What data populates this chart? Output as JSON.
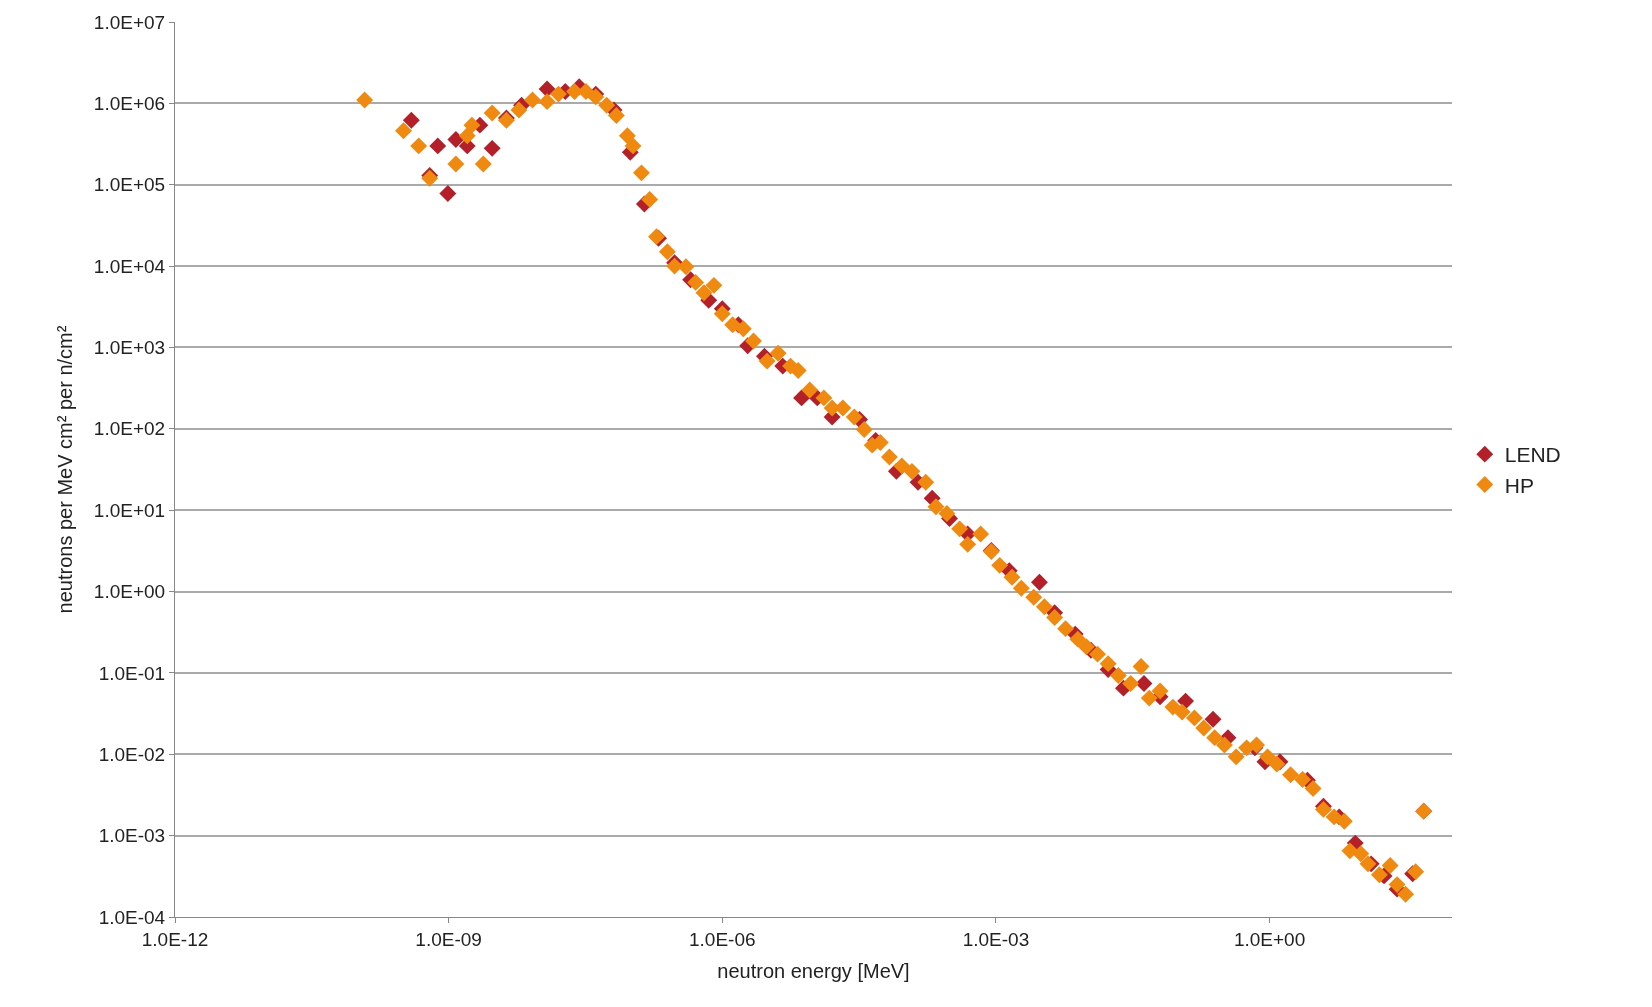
{
  "chart_data": {
    "type": "scatter",
    "xlabel": "neutron energy [MeV]",
    "ylabel": "neutrons per MeV cm² per n/cm²",
    "log": "xy",
    "grid": "y",
    "legend": "right",
    "marker": "diamond",
    "xlim": [
      1e-12,
      100
    ],
    "ylim": [
      0.0001,
      10000000
    ],
    "xticks": [
      {
        "value": 1e-12,
        "label": "1.0E-12"
      },
      {
        "value": 1e-09,
        "label": "1.0E-09"
      },
      {
        "value": 1e-06,
        "label": "1.0E-06"
      },
      {
        "value": 0.001,
        "label": "1.0E-03"
      },
      {
        "value": 1,
        "label": "1.0E+00"
      }
    ],
    "yticks": [
      {
        "value": 0.0001,
        "label": "1.0E-04"
      },
      {
        "value": 0.001,
        "label": "1.0E-03"
      },
      {
        "value": 0.01,
        "label": "1.0E-02"
      },
      {
        "value": 0.1,
        "label": "1.0E-01"
      },
      {
        "value": 1,
        "label": "1.0E+00"
      },
      {
        "value": 10,
        "label": "1.0E+01"
      },
      {
        "value": 100,
        "label": "1.0E+02"
      },
      {
        "value": 1000,
        "label": "1.0E+03"
      },
      {
        "value": 10000,
        "label": "1.0E+04"
      },
      {
        "value": 100000,
        "label": "1.0E+05"
      },
      {
        "value": 1000000,
        "label": "1.0E+06"
      },
      {
        "value": 10000000,
        "label": "1.0E+07"
      }
    ],
    "series": [
      {
        "name": "LEND",
        "color": "#b3202a",
        "x": [
          3.9e-10,
          7.6e-10,
          6.2e-10,
          9.8e-10,
          1.2e-09,
          1.6e-09,
          2.2e-09,
          3e-09,
          4.3e-09,
          6.3e-09,
          1.2e-08,
          1.9e-08,
          2.7e-08,
          4.1e-08,
          6.5e-08,
          9.8e-08,
          1.4e-07,
          2e-07,
          3e-07,
          4.5e-07,
          7.1e-07,
          1e-06,
          1.5e-06,
          1.9e-06,
          2.9e-06,
          4.6e-06,
          7.4e-06,
          1.1e-05,
          1.6e-05,
          3.2e-05,
          4.8e-05,
          8.1e-05,
          0.00014,
          0.0002,
          0.00031,
          0.00049,
          0.00089,
          0.0014,
          0.003,
          0.0044,
          0.0074,
          0.011,
          0.017,
          0.025,
          0.042,
          0.063,
          0.12,
          0.24,
          0.35,
          0.69,
          0.89,
          1.3,
          2.6,
          3.9,
          5.8,
          8.7,
          13,
          18,
          25,
          37,
          49
        ],
        "values": [
          620000,
          300000,
          130000,
          78000,
          360000,
          300000,
          540000,
          280000,
          660000,
          950000,
          1500000,
          1400000,
          1600000,
          1300000,
          830000,
          250000,
          58000,
          22000,
          11000,
          6800,
          3800,
          3000,
          1900,
          1050,
          780,
          590,
          240,
          240,
          140,
          130,
          72,
          30,
          22,
          14,
          7.9,
          5.1,
          3.2,
          1.8,
          1.3,
          0.55,
          0.3,
          0.19,
          0.11,
          0.065,
          0.074,
          0.051,
          0.045,
          0.027,
          0.016,
          0.012,
          0.0081,
          0.0081,
          0.0048,
          0.0023,
          0.0017,
          0.00081,
          0.00045,
          0.00032,
          0.00022,
          0.00034,
          0.002
        ]
      },
      {
        "name": "HP",
        "color": "#f0890f",
        "x": [
          1.2e-10,
          3.2e-10,
          4.7e-10,
          6.2e-10,
          1.2e-09,
          1.6e-09,
          2.4e-09,
          1.8e-09,
          3e-09,
          4.3e-09,
          5.9e-09,
          8.3e-09,
          1.2e-08,
          1.6e-08,
          2.4e-08,
          3.2e-08,
          4.1e-08,
          5.4e-08,
          6.9e-08,
          9.1e-08,
          1.05e-07,
          1.3e-07,
          1.6e-07,
          1.9e-07,
          2.5e-07,
          3e-07,
          4e-07,
          5.1e-07,
          6.3e-07,
          8.1e-07,
          1e-06,
          1.3e-06,
          1.7e-06,
          2.2e-06,
          3.1e-06,
          4.1e-06,
          5.6e-06,
          6.8e-06,
          9.1e-06,
          1.3e-05,
          1.6e-05,
          2.1e-05,
          2.8e-05,
          3.6e-05,
          4.4e-05,
          5.4e-05,
          6.8e-05,
          9.3e-05,
          0.00012,
          0.00017,
          0.00022,
          0.00029,
          0.0004,
          0.00049,
          0.00068,
          0.00089,
          0.0011,
          0.0015,
          0.0019,
          0.0026,
          0.0034,
          0.0044,
          0.0058,
          0.0079,
          0.0098,
          0.013,
          0.017,
          0.022,
          0.03,
          0.039,
          0.048,
          0.063,
          0.087,
          0.11,
          0.15,
          0.19,
          0.25,
          0.32,
          0.43,
          0.56,
          0.72,
          0.95,
          1.2,
          1.7,
          2.3,
          3.0,
          3.9,
          5.1,
          6.6,
          7.6,
          10,
          12,
          16,
          21,
          25,
          31,
          40,
          49
        ],
        "values": [
          1100000,
          460000,
          300000,
          120000,
          180000,
          400000,
          180000,
          540000,
          760000,
          620000,
          830000,
          1100000,
          1050000,
          1300000,
          1400000,
          1400000,
          1200000,
          950000,
          710000,
          400000,
          300000,
          140000,
          66000,
          23000,
          15000,
          10000,
          9800,
          6300,
          4700,
          5800,
          2600,
          1900,
          1700,
          1200,
          680,
          850,
          590,
          520,
          300,
          240,
          180,
          180,
          140,
          98,
          63,
          68,
          45,
          35,
          30,
          22,
          11,
          9.1,
          5.9,
          3.8,
          5.1,
          3.1,
          2.1,
          1.5,
          1.1,
          0.85,
          0.65,
          0.48,
          0.35,
          0.26,
          0.21,
          0.17,
          0.13,
          0.093,
          0.074,
          0.12,
          0.049,
          0.06,
          0.038,
          0.033,
          0.028,
          0.021,
          0.016,
          0.013,
          0.0093,
          0.012,
          0.013,
          0.0093,
          0.0076,
          0.0056,
          0.0049,
          0.0038,
          0.0021,
          0.0017,
          0.0015,
          0.00065,
          0.0006,
          0.00045,
          0.00033,
          0.00043,
          0.00025,
          0.00019,
          0.00036,
          0.002
        ]
      }
    ]
  }
}
